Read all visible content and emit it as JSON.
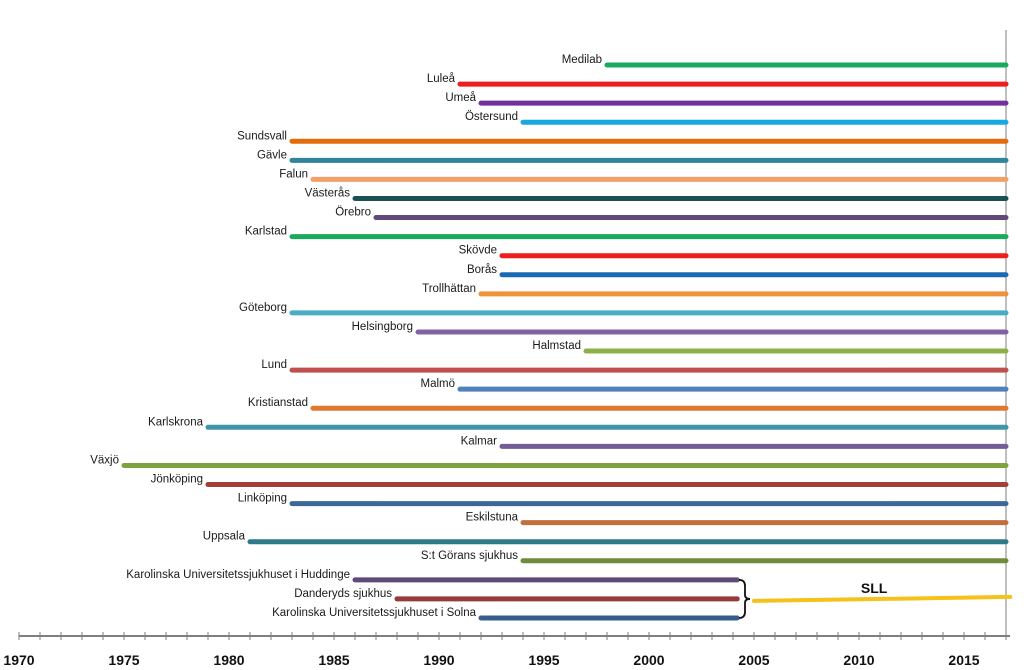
{
  "chart_data": {
    "type": "timeline",
    "title": "",
    "xlabel": "",
    "ylabel": "",
    "xlim": [
      1970,
      2017
    ],
    "x_ticks": [
      "1970",
      "1975",
      "1980",
      "1985",
      "1990",
      "1995",
      "2000",
      "2005",
      "2010",
      "2015"
    ],
    "series": [
      {
        "name": "Medilab",
        "start": 1998,
        "end": 2017,
        "color": "#1aaa5c"
      },
      {
        "name": "Luleå",
        "start": 1991,
        "end": 2017,
        "color": "#ee1c1c"
      },
      {
        "name": "Umeå",
        "start": 1992,
        "end": 2017,
        "color": "#7030a0"
      },
      {
        "name": "Östersund",
        "start": 1994,
        "end": 2017,
        "color": "#17a8e3"
      },
      {
        "name": "Sundsvall",
        "start": 1983,
        "end": 2017,
        "color": "#e46c0a"
      },
      {
        "name": "Gävle",
        "start": 1983,
        "end": 2017,
        "color": "#31849b"
      },
      {
        "name": "Falun",
        "start": 1984,
        "end": 2017,
        "color": "#f2a066"
      },
      {
        "name": "Västerås",
        "start": 1986,
        "end": 2017,
        "color": "#1c5152"
      },
      {
        "name": "Örebro",
        "start": 1987,
        "end": 2017,
        "color": "#604a7b"
      },
      {
        "name": "Karlstad",
        "start": 1983,
        "end": 2017,
        "color": "#1aaa5c"
      },
      {
        "name": "Skövde",
        "start": 1993,
        "end": 2017,
        "color": "#ee1c1c"
      },
      {
        "name": "Borås",
        "start": 1993,
        "end": 2017,
        "color": "#1a6ab3"
      },
      {
        "name": "Trollhättan",
        "start": 1992,
        "end": 2017,
        "color": "#f0923a"
      },
      {
        "name": "Göteborg",
        "start": 1983,
        "end": 2017,
        "color": "#4bacc6"
      },
      {
        "name": "Helsingborg",
        "start": 1989,
        "end": 2017,
        "color": "#8064a2"
      },
      {
        "name": "Halmstad",
        "start": 1997,
        "end": 2017,
        "color": "#8db04a"
      },
      {
        "name": "Lund",
        "start": 1983,
        "end": 2017,
        "color": "#c0504d"
      },
      {
        "name": "Malmö",
        "start": 1991,
        "end": 2017,
        "color": "#4f81bd"
      },
      {
        "name": "Kristianstad",
        "start": 1984,
        "end": 2017,
        "color": "#e0782e"
      },
      {
        "name": "Karlskrona",
        "start": 1979,
        "end": 2017,
        "color": "#4196a6"
      },
      {
        "name": "Kalmar",
        "start": 1993,
        "end": 2017,
        "color": "#745c94"
      },
      {
        "name": "Växjö",
        "start": 1975,
        "end": 2017,
        "color": "#7ea33e"
      },
      {
        "name": "Jönköping",
        "start": 1979,
        "end": 2017,
        "color": "#a23e3b"
      },
      {
        "name": "Linköping",
        "start": 1983,
        "end": 2017,
        "color": "#3d6797"
      },
      {
        "name": "Eskilstuna",
        "start": 1994,
        "end": 2017,
        "color": "#c0703a"
      },
      {
        "name": "Uppsala",
        "start": 1981,
        "end": 2017,
        "color": "#2e7a88"
      },
      {
        "name": "S:t Görans sjukhus",
        "start": 1994,
        "end": 2017,
        "color": "#6f8c3c"
      },
      {
        "name": "Karolinska Universitetssjukhuset i Huddinge",
        "start": 1986,
        "end": 2004.2,
        "color": "#5f4a7a"
      },
      {
        "name": "Danderyds sjukhus",
        "start": 1988,
        "end": 2004.2,
        "color": "#943c3a"
      },
      {
        "name": "Karolinska Universitetssjukhuset i Solna",
        "start": 1992,
        "end": 2004.2,
        "color": "#355f8a"
      }
    ],
    "merge": {
      "label": "SLL",
      "start": 2005,
      "end": 2017.2,
      "color": "#f5c21a"
    }
  }
}
